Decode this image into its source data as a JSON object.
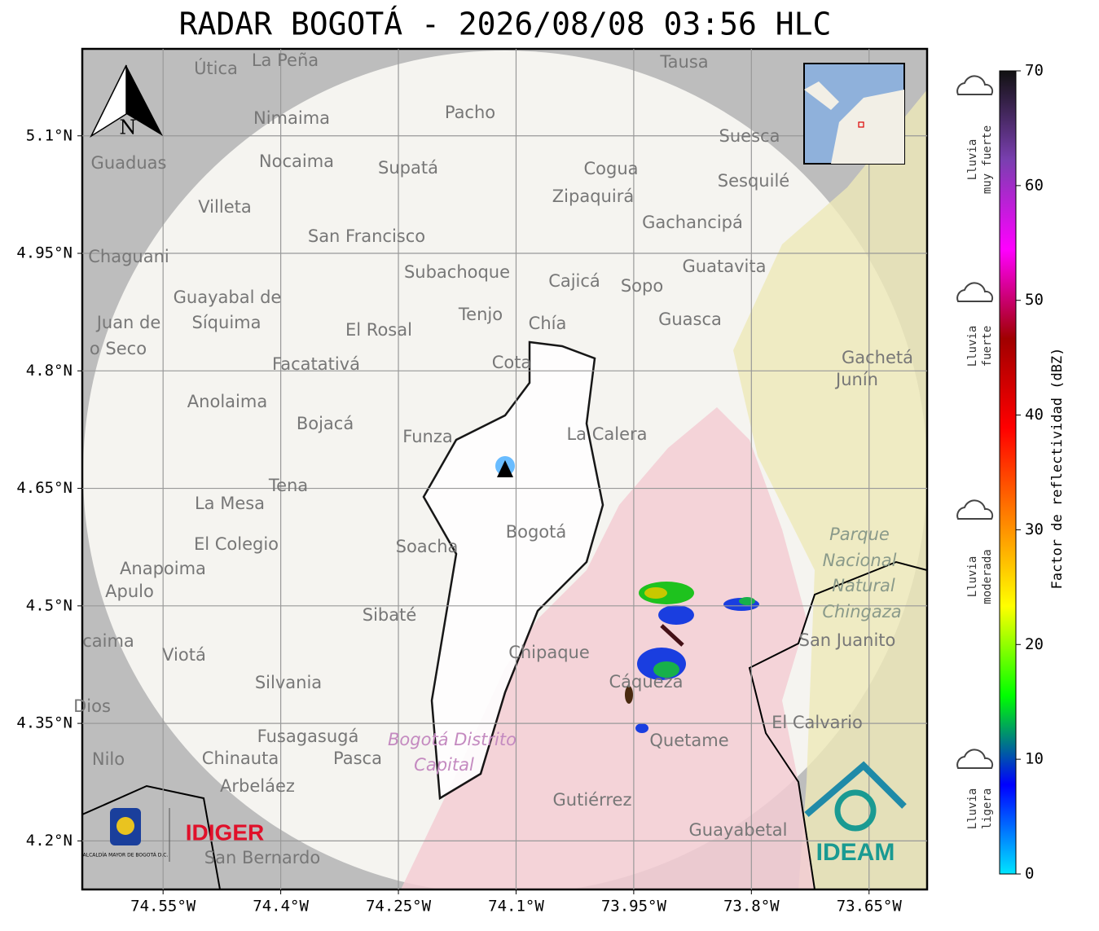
{
  "title": "RADAR BOGOTÁ - 2026/08/08 03:56 HLC",
  "map": {
    "xlim": [
      -74.653,
      -73.576
    ],
    "ylim": [
      4.138,
      5.211
    ],
    "xticks": [
      {
        "value": -74.55,
        "label": "74.55°W"
      },
      {
        "value": -74.4,
        "label": "74.4°W"
      },
      {
        "value": -74.25,
        "label": "74.25°W"
      },
      {
        "value": -74.1,
        "label": "74.1°W"
      },
      {
        "value": -73.95,
        "label": "73.95°W"
      },
      {
        "value": -73.8,
        "label": "73.8°W"
      },
      {
        "value": -73.65,
        "label": "73.65°W"
      }
    ],
    "yticks": [
      {
        "value": 5.1,
        "label": "5.1°N"
      },
      {
        "value": 4.95,
        "label": "4.95°N"
      },
      {
        "value": 4.8,
        "label": "4.8°N"
      },
      {
        "value": 4.65,
        "label": "4.65°N"
      },
      {
        "value": 4.5,
        "label": "4.5°N"
      },
      {
        "value": 4.35,
        "label": "4.35°N"
      },
      {
        "value": 4.2,
        "label": "4.2°N"
      }
    ],
    "places": [
      "Útica",
      "La Peña",
      "Tausa",
      "Pacho",
      "Nimaima",
      "Suesca",
      "Guaduas",
      "Nocaima",
      "Supatá",
      "Cogua",
      "Sesquilé",
      "Zipaquirá",
      "Villeta",
      "Gachancipá",
      "San Francisco",
      "Chaguani",
      "Guatavita",
      "Subachoque",
      "Cajicá",
      "Sopo",
      "Guayabal de",
      "Síquima",
      "Juan de",
      "Tenjo",
      "Guasca",
      "Chía",
      "El Rosal",
      "o Seco",
      "Gachetá",
      "Junín",
      "Facatativá",
      "Cota",
      "Anolaima",
      "Bojacá",
      "Funza",
      "La Calera",
      "Tena",
      "La Mesa",
      "Bogotá",
      "Parque",
      "El Colegio",
      "Soacha",
      "Nacional",
      "Anapoima",
      "Natural",
      "Apulo",
      "Chingaza",
      "Sibaté",
      "San Juanito",
      "caima",
      "Viotá",
      "Chipaque",
      "Cáqueza",
      "Silvania",
      "Dios",
      "El Calvario",
      "Fusagasugá",
      "Bogotá Distrito",
      "Quetame",
      "Nilo",
      "Chinauta",
      "Pasca",
      "Capital",
      "Arbeláez",
      "Gutiérrez",
      "Guayabetal",
      "San Bernardo"
    ],
    "north": "N"
  },
  "logos": {
    "alcaldia": "ALCALDÍA MAYOR DE BOGOTÁ D.C.",
    "idiger": "IDIGER",
    "ideam": "IDEAM"
  },
  "colorbar": {
    "label": "Factor de reflectividad (dBZ)",
    "lim": [
      0,
      70
    ],
    "ticks": [
      0,
      10,
      20,
      30,
      40,
      50,
      60,
      70
    ],
    "colors": [
      "#00e5ff",
      "#0000ff",
      "#00ff00",
      "#ffff00",
      "#ff8000",
      "#ff0000",
      "#a00000",
      "#ff00ff",
      "#7a3fb0",
      "#111111"
    ]
  },
  "intensity": [
    [
      "Lluvia",
      "muy fuerte"
    ],
    [
      "Lluvia",
      "fuerte"
    ],
    [
      "Lluvia",
      "moderada"
    ],
    [
      "Lluvia",
      "ligera"
    ]
  ]
}
